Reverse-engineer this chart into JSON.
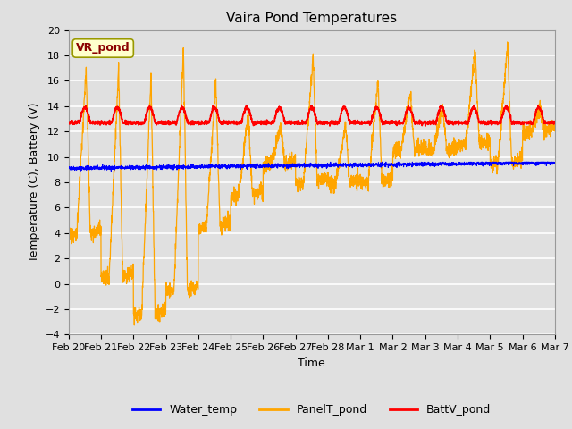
{
  "title": "Vaira Pond Temperatures",
  "xlabel": "Time",
  "ylabel": "Temperature (C), Battery (V)",
  "ylim": [
    -4,
    20
  ],
  "yticks": [
    -4,
    -2,
    0,
    2,
    4,
    6,
    8,
    10,
    12,
    14,
    16,
    18,
    20
  ],
  "xlim": [
    0,
    15
  ],
  "background_color": "#e0e0e0",
  "plot_bg_color": "#e0e0e0",
  "grid_color": "white",
  "legend_labels": [
    "Water_temp",
    "PanelT_pond",
    "BattV_pond"
  ],
  "legend_colors": [
    "blue",
    "orange",
    "red"
  ],
  "annotation_text": "VR_pond",
  "annotation_color": "#8B0000",
  "annotation_bg": "#ffffcc",
  "title_fontsize": 11,
  "label_fontsize": 9,
  "tick_fontsize": 8,
  "x_tick_labels": [
    "Feb 20",
    "Feb 21",
    "Feb 22",
    "Feb 23",
    "Feb 24",
    "Feb 25",
    "Feb 26",
    "Feb 27",
    "Feb 28",
    "Mar 1",
    "Mar 2",
    "Mar 3",
    "Mar 4",
    "Mar 5",
    "Mar 6",
    "Mar 7"
  ],
  "day_peaks": [
    17.0,
    17.0,
    16.5,
    18.5,
    16.0,
    13.5,
    12.5,
    18.0,
    12.5,
    16.0,
    15.0,
    14.0,
    18.5,
    19.0,
    14.0,
    13.0
  ],
  "day_mins": [
    4.0,
    0.5,
    -2.5,
    -0.5,
    4.5,
    7.0,
    9.5,
    8.0,
    8.0,
    8.0,
    10.5,
    10.5,
    11.0,
    9.5,
    12.0,
    12.5
  ]
}
